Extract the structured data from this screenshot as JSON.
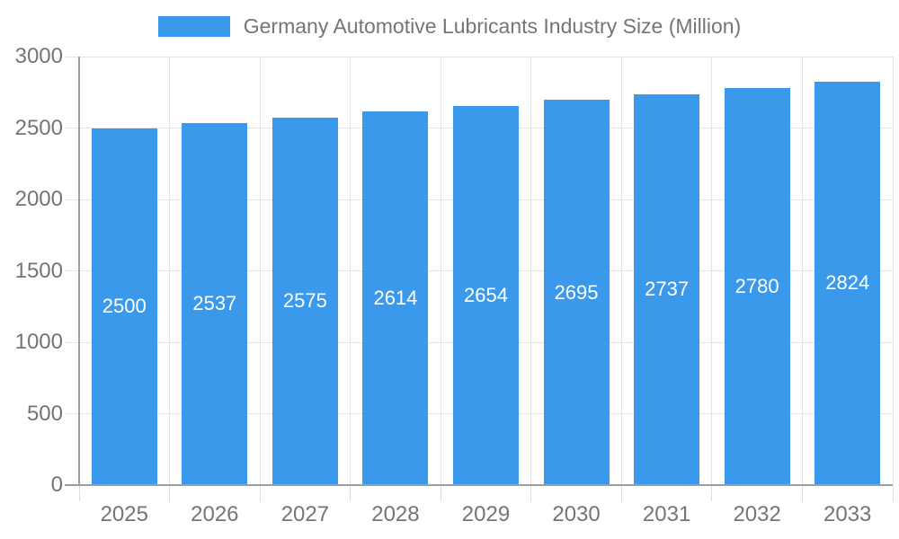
{
  "legend": {
    "label": "Germany Automotive Lubricants Industry Size (Million)"
  },
  "chart_data": {
    "type": "bar",
    "title": "Germany Automotive Lubricants Industry Size (Million)",
    "categories": [
      "2025",
      "2026",
      "2027",
      "2028",
      "2029",
      "2030",
      "2031",
      "2032",
      "2033"
    ],
    "values": [
      2500,
      2537,
      2575,
      2614,
      2654,
      2695,
      2737,
      2780,
      2824
    ],
    "xlabel": "",
    "ylabel": "",
    "ylim": [
      0,
      3000
    ],
    "yticks": [
      0,
      500,
      1000,
      1500,
      2000,
      2500,
      3000
    ],
    "grid": true,
    "legend_position": "top-center",
    "bar_labels_inside": true,
    "colors": {
      "bar": "#3b99ec",
      "bar_label": "#ffffff",
      "axis_text": "#757575",
      "gridline": "#e4e4e4",
      "axis_line": "#9e9e9e",
      "background": "#ffffff"
    }
  }
}
